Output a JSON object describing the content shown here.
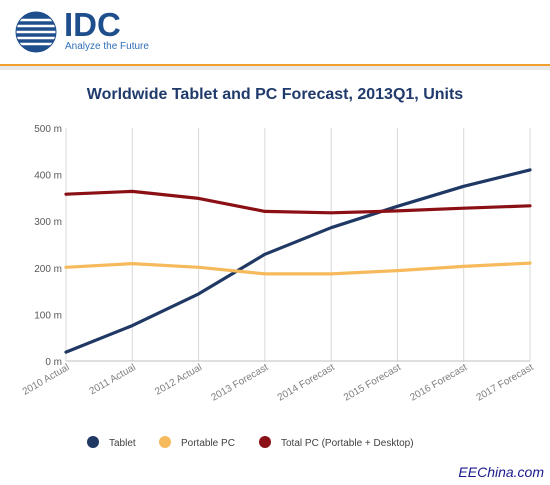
{
  "header": {
    "logo_text": "IDC",
    "logo_tagline": "Analyze the Future"
  },
  "watermark": "EEChina.com",
  "colors": {
    "tablet": "#1f3864",
    "portable_pc": "#f6b95c",
    "total_pc": "#8b1015",
    "accent": "#f0a030"
  },
  "chart_data": {
    "type": "line",
    "title": "Worldwide Tablet and PC Forecast, 2013Q1, Units",
    "categories": [
      "2010 Actual",
      "2011 Actual",
      "2012 Actual",
      "2013 Forecast",
      "2014 Forecast",
      "2015 Forecast",
      "2016 Forecast",
      "2017 Forecast"
    ],
    "y_ticks": [
      "0 m",
      "100 m",
      "200 m",
      "300 m",
      "400 m",
      "500 m"
    ],
    "ylim": [
      0,
      500
    ],
    "grid": "vertical",
    "legend_position": "bottom",
    "series": [
      {
        "name": "Tablet",
        "color": "#1f3864",
        "values": [
          19,
          76,
          144,
          229,
          286,
          332,
          375,
          410
        ]
      },
      {
        "name": "Portable PC",
        "color": "#f6b95c",
        "values": [
          201,
          209,
          201,
          187,
          187,
          194,
          203,
          210
        ]
      },
      {
        "name": "Total PC (Portable + Desktop)",
        "color": "#8b1015",
        "values": [
          358,
          364,
          349,
          321,
          318,
          322,
          328,
          333
        ]
      }
    ]
  }
}
